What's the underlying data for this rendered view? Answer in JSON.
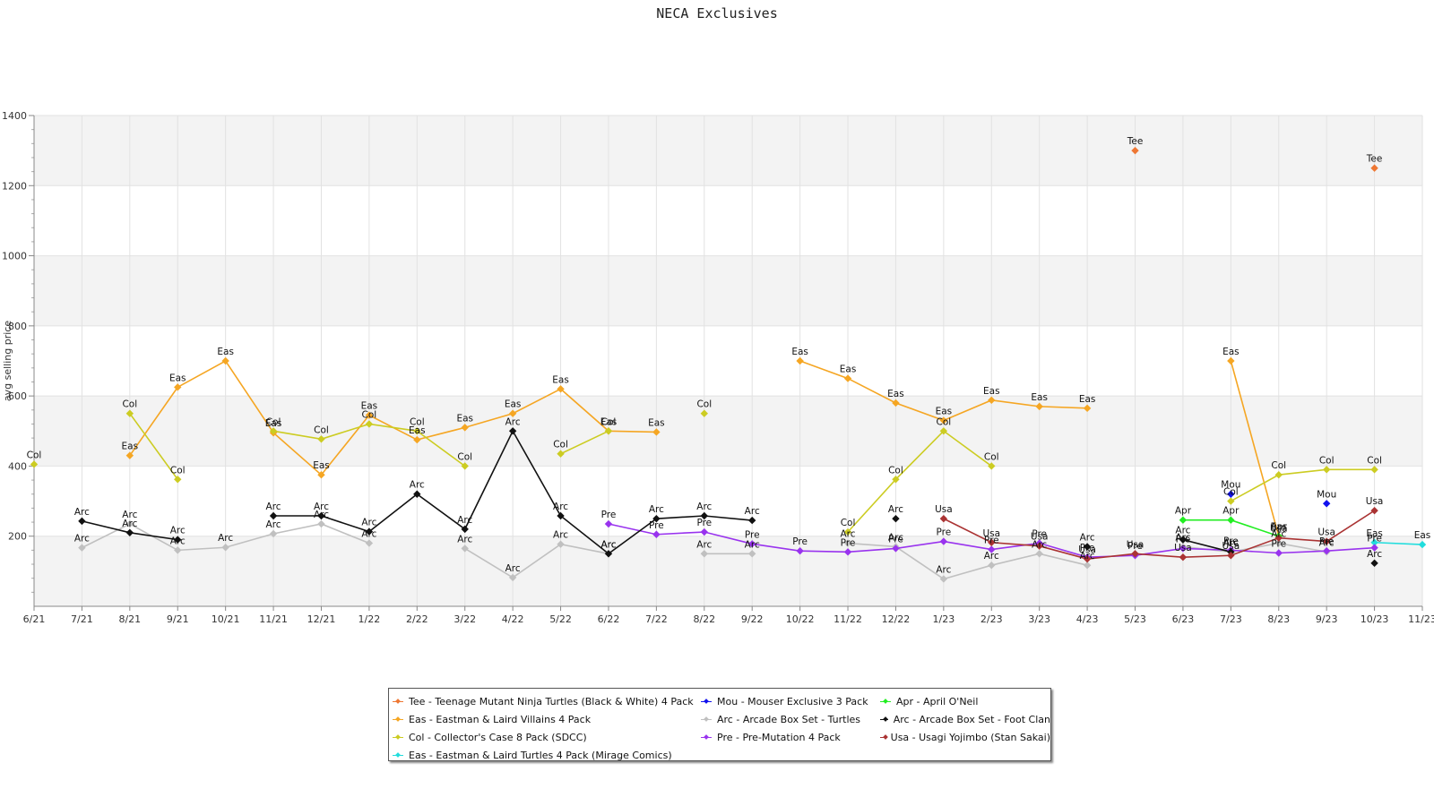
{
  "chart_data": {
    "type": "line",
    "title": "NECA Exclusives",
    "ylabel": "avg selling price",
    "xlabel": "",
    "ylim": [
      0,
      1400
    ],
    "yticks": [
      200,
      400,
      600,
      800,
      1000,
      1200,
      1400
    ],
    "categories": [
      "6/21",
      "7/21",
      "8/21",
      "9/21",
      "10/21",
      "11/21",
      "12/21",
      "1/22",
      "2/22",
      "3/22",
      "4/22",
      "5/22",
      "6/22",
      "7/22",
      "8/22",
      "9/22",
      "10/22",
      "11/22",
      "12/22",
      "1/23",
      "2/23",
      "3/23",
      "4/23",
      "5/23",
      "6/23",
      "7/23",
      "8/23",
      "9/23",
      "10/23",
      "11/23"
    ],
    "grid": "on",
    "legend_position": "bottom-center",
    "series": [
      {
        "name": "Tee - Teenage Mutant Ninja Turtles (Black & White) 4 Pack",
        "label": "Tee",
        "color": "#ee7733",
        "values": [
          null,
          null,
          null,
          null,
          null,
          null,
          null,
          null,
          null,
          null,
          null,
          null,
          null,
          null,
          null,
          null,
          null,
          null,
          null,
          null,
          null,
          null,
          null,
          1300,
          null,
          null,
          null,
          null,
          1250,
          null
        ]
      },
      {
        "name": "Eas - Eastman & Laird Villains 4 Pack",
        "label": "Eas",
        "color": "#f5a623",
        "values": [
          null,
          null,
          430,
          625,
          700,
          495,
          375,
          545,
          475,
          510,
          550,
          620,
          500,
          497,
          null,
          null,
          700,
          650,
          580,
          530,
          588,
          570,
          565,
          null,
          null,
          700,
          200,
          null,
          null,
          null
        ]
      },
      {
        "name": "Col - Collector's Case 8 Pack (SDCC)",
        "label": "Col",
        "color": "#cccc22",
        "values": [
          405,
          null,
          550,
          362,
          null,
          500,
          477,
          520,
          500,
          400,
          null,
          435,
          500,
          null,
          550,
          null,
          null,
          212,
          362,
          500,
          400,
          null,
          null,
          null,
          null,
          300,
          375,
          390,
          390,
          null
        ]
      },
      {
        "name": "Eas - Eastman & Laird Turtles 4 Pack (Mirage Comics)",
        "label": "Eas",
        "color": "#22dddd",
        "values": [
          null,
          null,
          null,
          null,
          null,
          null,
          null,
          null,
          null,
          null,
          null,
          null,
          null,
          null,
          null,
          null,
          null,
          null,
          null,
          null,
          null,
          null,
          null,
          null,
          null,
          null,
          null,
          null,
          182,
          176
        ]
      },
      {
        "name": "Mou - Mouser Exclusive 3 Pack",
        "label": "Mou",
        "color": "#1111ee",
        "values": [
          null,
          null,
          null,
          null,
          null,
          null,
          null,
          null,
          null,
          null,
          null,
          null,
          null,
          null,
          null,
          null,
          null,
          null,
          null,
          null,
          null,
          null,
          null,
          null,
          null,
          320,
          null,
          293,
          null,
          null
        ]
      },
      {
        "name": "Arc - Arcade Box Set - Turtles",
        "label": "Arc",
        "color": "#c0c0c0",
        "values": [
          null,
          167,
          235,
          160,
          168,
          207,
          235,
          180,
          null,
          165,
          82,
          177,
          150,
          null,
          150,
          150,
          null,
          180,
          170,
          78,
          117,
          150,
          117,
          null,
          170,
          155,
          180,
          155,
          null,
          null
        ]
      },
      {
        "name": "Pre - Pre-Mutation 4 Pack",
        "label": "Pre",
        "color": "#9933ee",
        "values": [
          null,
          null,
          null,
          null,
          null,
          null,
          null,
          null,
          null,
          null,
          null,
          null,
          235,
          205,
          212,
          178,
          158,
          155,
          165,
          185,
          162,
          180,
          140,
          145,
          165,
          160,
          152,
          158,
          167,
          null
        ]
      },
      {
        "name": "Apr - April O'Neil",
        "label": "Apr",
        "color": "#22ee22",
        "values": [
          null,
          null,
          null,
          null,
          null,
          null,
          null,
          null,
          null,
          null,
          null,
          null,
          null,
          null,
          null,
          null,
          null,
          null,
          null,
          null,
          null,
          null,
          null,
          null,
          246,
          246,
          200,
          null,
          null,
          null
        ]
      },
      {
        "name": "Arc - Arcade Box Set - Foot Clan",
        "label": "Arc",
        "color": "#111111",
        "values": [
          null,
          243,
          210,
          190,
          null,
          258,
          258,
          213,
          320,
          220,
          500,
          258,
          150,
          250,
          258,
          245,
          null,
          null,
          250,
          null,
          null,
          null,
          170,
          null,
          190,
          155,
          null,
          null,
          123,
          null
        ]
      },
      {
        "name": "Usa - Usagi Yojimbo (Stan Sakai)",
        "label": "Usa",
        "color": "#aa3333",
        "values": [
          null,
          null,
          null,
          null,
          null,
          null,
          null,
          null,
          null,
          null,
          null,
          null,
          null,
          null,
          null,
          null,
          null,
          null,
          null,
          250,
          182,
          172,
          135,
          150,
          140,
          145,
          195,
          185,
          273,
          null
        ]
      }
    ]
  }
}
